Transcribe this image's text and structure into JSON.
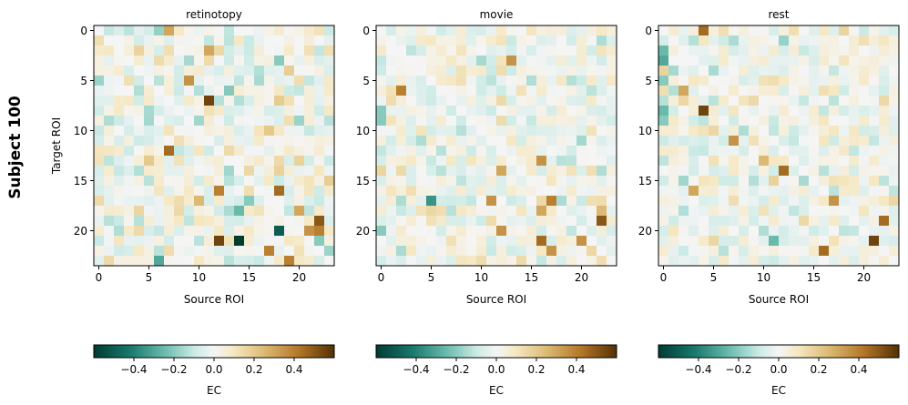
{
  "chart_data": {
    "type": "heatmap",
    "suptitle": "Subject 100",
    "colormap": "BrBG_r",
    "vmin": -0.6,
    "vmax": 0.6,
    "grid": false,
    "n_rows": 24,
    "n_cols": 24,
    "panels": [
      {
        "title": "retinotopy",
        "xlabel": "Source ROI",
        "ylabel": "Target ROI",
        "xticks": [
          0,
          5,
          10,
          15,
          20
        ],
        "yticks": [
          0,
          5,
          10,
          15,
          20
        ],
        "colorbar": {
          "label": "EC",
          "ticks": [
            -0.4,
            -0.2,
            0.0,
            0.2,
            0.4
          ],
          "tick_labels": [
            "−0.4",
            "−0.2",
            "0.0",
            "0.2",
            "0.4"
          ]
        },
        "seed": 100,
        "scale": 0.14,
        "highlights": [
          [
            0,
            6,
            -0.18
          ],
          [
            0,
            7,
            0.3
          ],
          [
            2,
            11,
            0.3
          ],
          [
            3,
            18,
            -0.2
          ],
          [
            5,
            9,
            0.35
          ],
          [
            7,
            11,
            0.55
          ],
          [
            12,
            7,
            0.45
          ],
          [
            13,
            5,
            0.2
          ],
          [
            16,
            12,
            0.4
          ],
          [
            16,
            18,
            0.45
          ],
          [
            17,
            10,
            0.25
          ],
          [
            17,
            15,
            -0.2
          ],
          [
            18,
            14,
            -0.25
          ],
          [
            18,
            20,
            0.3
          ],
          [
            19,
            22,
            0.5
          ],
          [
            20,
            18,
            -0.5
          ],
          [
            20,
            21,
            0.35
          ],
          [
            20,
            22,
            0.4
          ],
          [
            21,
            12,
            0.55
          ],
          [
            21,
            14,
            -0.6
          ],
          [
            22,
            17,
            0.4
          ],
          [
            23,
            6,
            -0.3
          ],
          [
            23,
            19,
            0.4
          ]
        ]
      },
      {
        "title": "movie",
        "xlabel": "Source ROI",
        "ylabel": "",
        "xticks": [
          0,
          5,
          10,
          15,
          20
        ],
        "yticks": [
          0,
          5,
          10,
          15,
          20
        ],
        "colorbar": {
          "label": "EC",
          "ticks": [
            -0.4,
            -0.2,
            0.0,
            0.2,
            0.4
          ],
          "tick_labels": [
            "−0.4",
            "−0.2",
            "0.0",
            "0.2",
            "0.4"
          ]
        },
        "seed": 200,
        "scale": 0.12,
        "highlights": [
          [
            3,
            13,
            0.35
          ],
          [
            6,
            2,
            0.4
          ],
          [
            8,
            0,
            -0.2
          ],
          [
            9,
            0,
            -0.2
          ],
          [
            13,
            16,
            0.35
          ],
          [
            14,
            12,
            0.3
          ],
          [
            17,
            5,
            -0.35
          ],
          [
            17,
            11,
            0.35
          ],
          [
            17,
            17,
            0.4
          ],
          [
            18,
            16,
            0.3
          ],
          [
            18,
            22,
            0.25
          ],
          [
            19,
            22,
            0.5
          ],
          [
            20,
            12,
            0.35
          ],
          [
            21,
            16,
            0.45
          ],
          [
            22,
            17,
            0.35
          ],
          [
            21,
            20,
            0.35
          ],
          [
            20,
            0,
            -0.2
          ]
        ]
      },
      {
        "title": "rest",
        "xlabel": "Source ROI",
        "ylabel": "",
        "xticks": [
          0,
          5,
          10,
          15,
          20
        ],
        "yticks": [
          0,
          5,
          10,
          15,
          20
        ],
        "colorbar": {
          "label": "EC",
          "ticks": [
            -0.4,
            -0.2,
            0.0,
            0.2,
            0.4
          ],
          "tick_labels": [
            "−0.4",
            "−0.2",
            "0.0",
            "0.2",
            "0.4"
          ]
        },
        "seed": 300,
        "scale": 0.12,
        "highlights": [
          [
            0,
            4,
            0.45
          ],
          [
            2,
            0,
            -0.25
          ],
          [
            3,
            0,
            -0.3
          ],
          [
            5,
            0,
            -0.2
          ],
          [
            6,
            2,
            0.3
          ],
          [
            8,
            4,
            0.55
          ],
          [
            8,
            0,
            -0.25
          ],
          [
            9,
            0,
            -0.2
          ],
          [
            11,
            7,
            0.35
          ],
          [
            14,
            12,
            0.45
          ],
          [
            16,
            3,
            0.3
          ],
          [
            17,
            17,
            0.35
          ],
          [
            19,
            22,
            0.45
          ],
          [
            21,
            11,
            -0.25
          ],
          [
            21,
            21,
            0.55
          ],
          [
            22,
            16,
            0.45
          ],
          [
            13,
            10,
            0.25
          ]
        ]
      }
    ]
  }
}
